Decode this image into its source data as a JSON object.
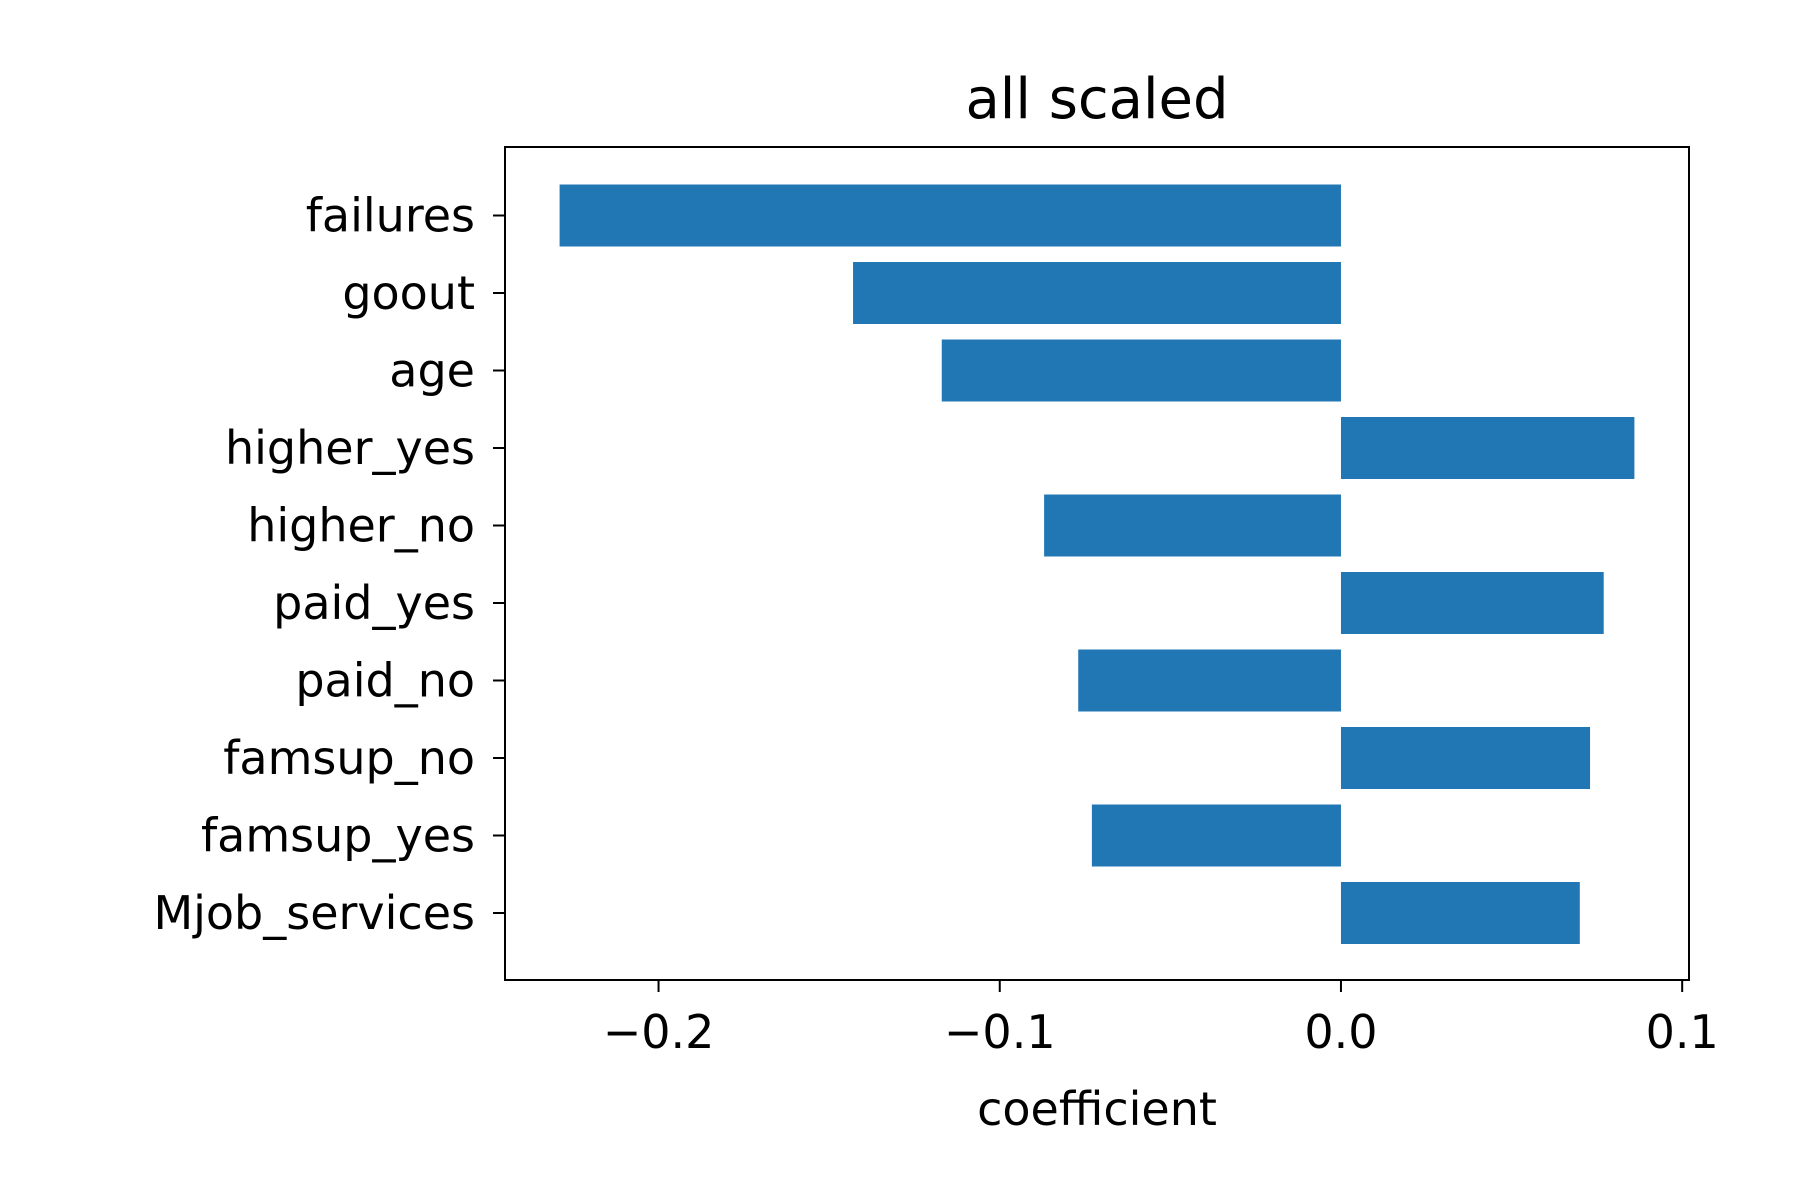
{
  "chart_data": {
    "type": "bar",
    "orientation": "horizontal",
    "title": "all scaled",
    "xlabel": "coefficient",
    "ylabel": "",
    "categories": [
      "failures",
      "goout",
      "age",
      "higher_yes",
      "higher_no",
      "paid_yes",
      "paid_no",
      "famsup_no",
      "famsup_yes",
      "Mjob_services"
    ],
    "values": [
      -0.229,
      -0.143,
      -0.117,
      0.086,
      -0.087,
      0.077,
      -0.077,
      0.073,
      -0.073,
      0.07
    ],
    "xlim": [
      -0.245,
      0.102
    ],
    "xticks": [
      -0.2,
      -0.1,
      0.0,
      0.1
    ],
    "xtick_labels": [
      "−0.2",
      "−0.1",
      "0.0",
      "0.1"
    ],
    "bar_color": "#2077b4",
    "grid": false,
    "legend": false
  }
}
